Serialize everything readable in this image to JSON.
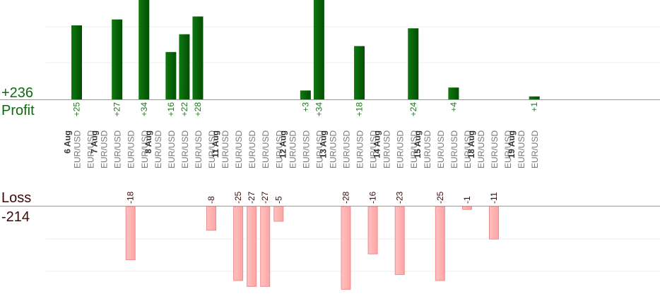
{
  "chart_data": {
    "type": "bar",
    "profit": {
      "label": "Profit",
      "total": "+236",
      "color": "#0a6b0a"
    },
    "loss": {
      "label": "Loss",
      "total": "-214",
      "color": "#ffb3b3"
    },
    "trades": [
      {
        "date": "6 Aug",
        "pair": "EUR/USD",
        "value": 25
      },
      {
        "date": "",
        "pair": "EUR/USD",
        "value": null
      },
      {
        "date": "7 Aug",
        "pair": "EUR/USD",
        "value": null
      },
      {
        "date": "",
        "pair": "EUR/USD",
        "value": 27
      },
      {
        "date": "",
        "pair": "EUR/USD",
        "value": -18
      },
      {
        "date": "",
        "pair": "EUR/USD",
        "value": 34
      },
      {
        "date": "8 Aug",
        "pair": "EUR/USD",
        "value": null
      },
      {
        "date": "",
        "pair": "EUR/USD",
        "value": 16
      },
      {
        "date": "",
        "pair": "EUR/USD",
        "value": 22
      },
      {
        "date": "",
        "pair": "EUR/USD",
        "value": 28
      },
      {
        "date": "",
        "pair": "EUR/USD",
        "value": -8
      },
      {
        "date": "11 Aug",
        "pair": "EUR/USD",
        "value": null
      },
      {
        "date": "",
        "pair": "EUR/USD",
        "value": -25
      },
      {
        "date": "",
        "pair": "EUR/USD",
        "value": -27
      },
      {
        "date": "",
        "pair": "EUR/USD",
        "value": -27
      },
      {
        "date": "",
        "pair": "EUR/USD",
        "value": -5
      },
      {
        "date": "12 Aug",
        "pair": "EUR/USD",
        "value": null
      },
      {
        "date": "",
        "pair": "EUR/USD",
        "value": 3
      },
      {
        "date": "",
        "pair": "EUR/USD",
        "value": 34
      },
      {
        "date": "13 Aug",
        "pair": "EUR/USD",
        "value": null
      },
      {
        "date": "",
        "pair": "EUR/USD",
        "value": -28
      },
      {
        "date": "",
        "pair": "EUR/USD",
        "value": 18
      },
      {
        "date": "",
        "pair": "EUR/USD",
        "value": -16
      },
      {
        "date": "14 Aug",
        "pair": "EUR/USD",
        "value": null
      },
      {
        "date": "",
        "pair": "EUR/USD",
        "value": -23
      },
      {
        "date": "",
        "pair": "EUR/USD",
        "value": 24
      },
      {
        "date": "15 Aug",
        "pair": "EUR/USD",
        "value": null
      },
      {
        "date": "",
        "pair": "EUR/USD",
        "value": -25
      },
      {
        "date": "",
        "pair": "EUR/USD",
        "value": 4
      },
      {
        "date": "",
        "pair": "EUR/USD",
        "value": -1
      },
      {
        "date": "18 Aug",
        "pair": "EUR/USD",
        "value": null
      },
      {
        "date": "",
        "pair": "EUR/USD",
        "value": -11
      },
      {
        "date": "",
        "pair": "EUR/USD",
        "value": null
      },
      {
        "date": "19 Aug",
        "pair": "EUR/USD",
        "value": null
      },
      {
        "date": "",
        "pair": "EUR/USD",
        "value": 1
      }
    ]
  }
}
